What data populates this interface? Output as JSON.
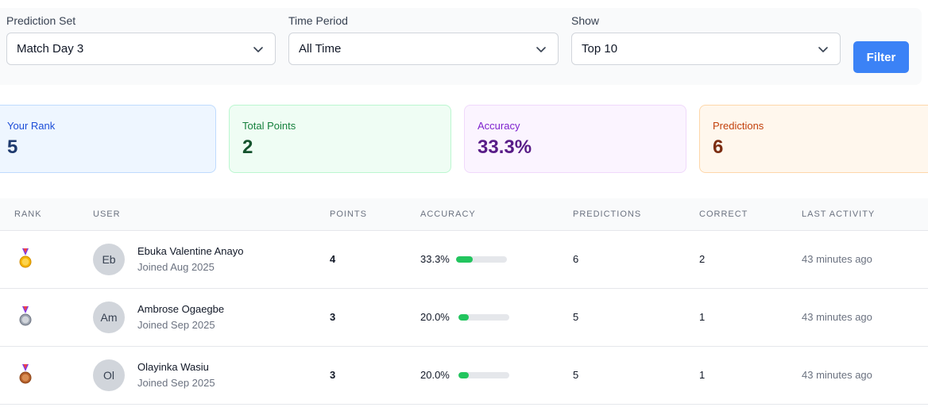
{
  "filters": {
    "prediction_set": {
      "label": "Prediction Set",
      "value": "Match Day 3"
    },
    "time_period": {
      "label": "Time Period",
      "value": "All Time"
    },
    "show": {
      "label": "Show",
      "value": "Top 10"
    },
    "filter_button": "Filter"
  },
  "stats": {
    "rank": {
      "label": "Your Rank",
      "value": "5"
    },
    "points": {
      "label": "Total Points",
      "value": "2"
    },
    "accuracy": {
      "label": "Accuracy",
      "value": "33.3%"
    },
    "predictions": {
      "label": "Predictions",
      "value": "6"
    }
  },
  "table": {
    "headers": {
      "rank": "RANK",
      "user": "USER",
      "points": "POINTS",
      "accuracy": "ACCURACY",
      "predictions": "PREDICTIONS",
      "correct": "CORRECT",
      "last_activity": "LAST ACTIVITY"
    },
    "rows": [
      {
        "medal": "gold-medal-icon",
        "initials": "Eb",
        "name": "Ebuka Valentine Anayo",
        "joined": "Joined Aug 2025",
        "points": "4",
        "accuracy": "33.3%",
        "accuracy_fraction": 0.333,
        "predictions": "6",
        "correct": "2",
        "last_activity": "43 minutes ago"
      },
      {
        "medal": "silver-medal-icon",
        "initials": "Am",
        "name": "Ambrose Ogaegbe",
        "joined": "Joined Sep 2025",
        "points": "3",
        "accuracy": "20.0%",
        "accuracy_fraction": 0.2,
        "predictions": "5",
        "correct": "1",
        "last_activity": "43 minutes ago"
      },
      {
        "medal": "bronze-medal-icon",
        "initials": "Ol",
        "name": "Olayinka Wasiu",
        "joined": "Joined Sep 2025",
        "points": "3",
        "accuracy": "20.0%",
        "accuracy_fraction": 0.2,
        "predictions": "5",
        "correct": "1",
        "last_activity": "43 minutes ago"
      }
    ]
  },
  "colors": {
    "accent": "#3b82f6",
    "progress": "#22c55e",
    "medal_gold": "#f5b400",
    "medal_silver": "#9ca3af",
    "medal_bronze": "#b45f2a"
  }
}
